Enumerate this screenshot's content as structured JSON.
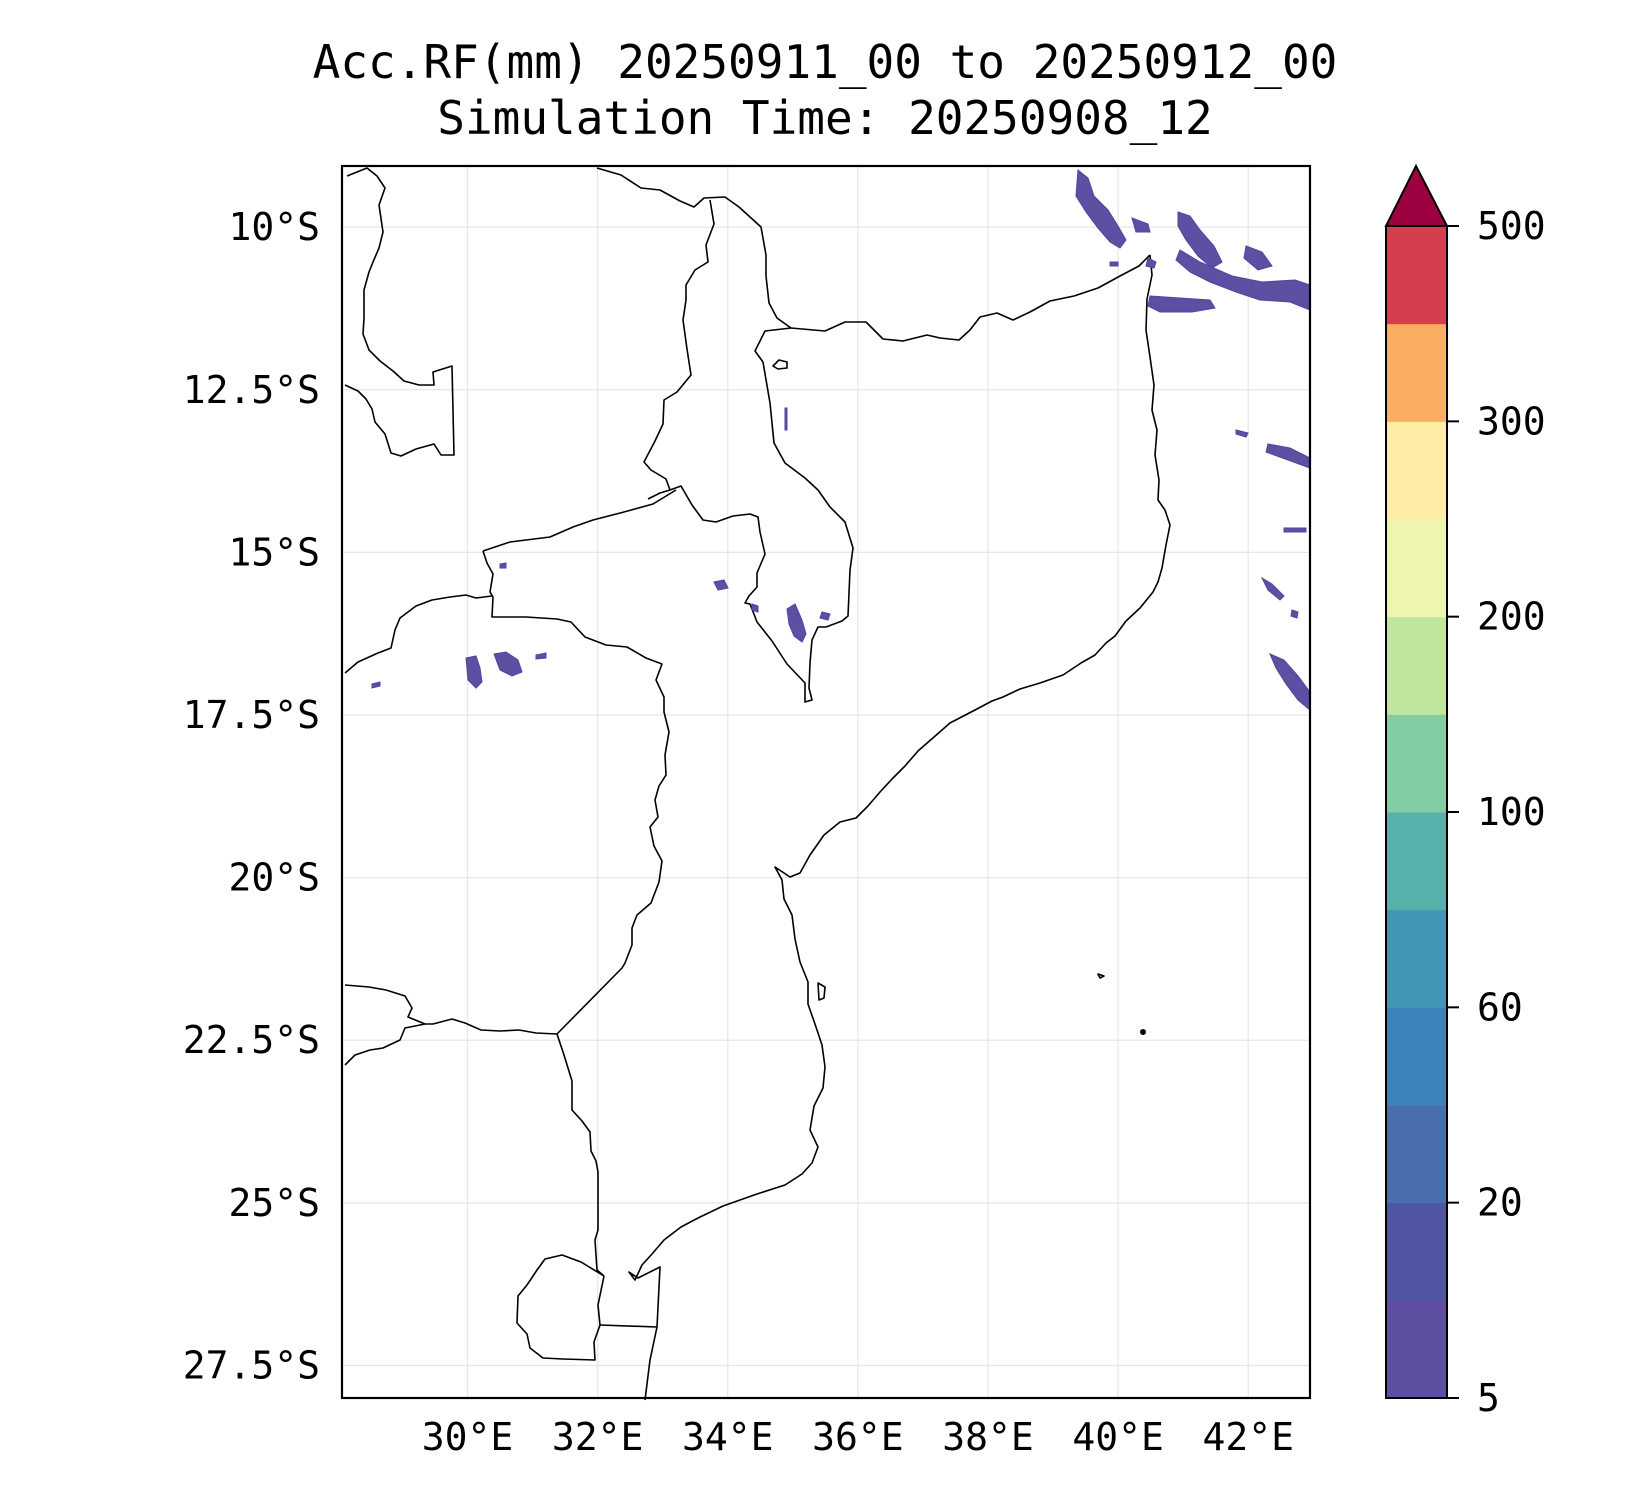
{
  "title": {
    "line1": "Acc.RF(mm) 20250911_00 to 20250912_00",
    "line2": "Simulation Time: 20250908_12"
  },
  "map": {
    "lon_range": [
      28.07,
      42.95
    ],
    "lat_range": [
      -28.0,
      -9.06
    ],
    "x_ticks": [
      {
        "value": 30,
        "label": "30°E"
      },
      {
        "value": 32,
        "label": "32°E"
      },
      {
        "value": 34,
        "label": "34°E"
      },
      {
        "value": 36,
        "label": "36°E"
      },
      {
        "value": 38,
        "label": "38°E"
      },
      {
        "value": 40,
        "label": "40°E"
      },
      {
        "value": 42,
        "label": "42°E"
      }
    ],
    "y_ticks": [
      {
        "value": -10,
        "label": "10°S"
      },
      {
        "value": -12.5,
        "label": "12.5°S"
      },
      {
        "value": -15,
        "label": "15°S"
      },
      {
        "value": -17.5,
        "label": "17.5°S"
      },
      {
        "value": -20,
        "label": "20°S"
      },
      {
        "value": -22.5,
        "label": "22.5°S"
      },
      {
        "value": -25,
        "label": "25°S"
      },
      {
        "value": -27.5,
        "label": "27.5°S"
      }
    ],
    "gridlines": true,
    "rain_color": "#5e4fa2"
  },
  "colorbar": {
    "tick_labels": [
      "5",
      "20",
      "60",
      "100",
      "200",
      "300",
      "500"
    ],
    "extend": "max",
    "colors": [
      "#5e4fa2",
      "#4f55a3",
      "#4a6db0",
      "#3a83bb",
      "#4196b5",
      "#56b1ab",
      "#82cda1",
      "#c2e59e",
      "#eef6ad",
      "#feeda4",
      "#fbae62",
      "#d53e4f"
    ],
    "extend_color": "#9e0142"
  }
}
